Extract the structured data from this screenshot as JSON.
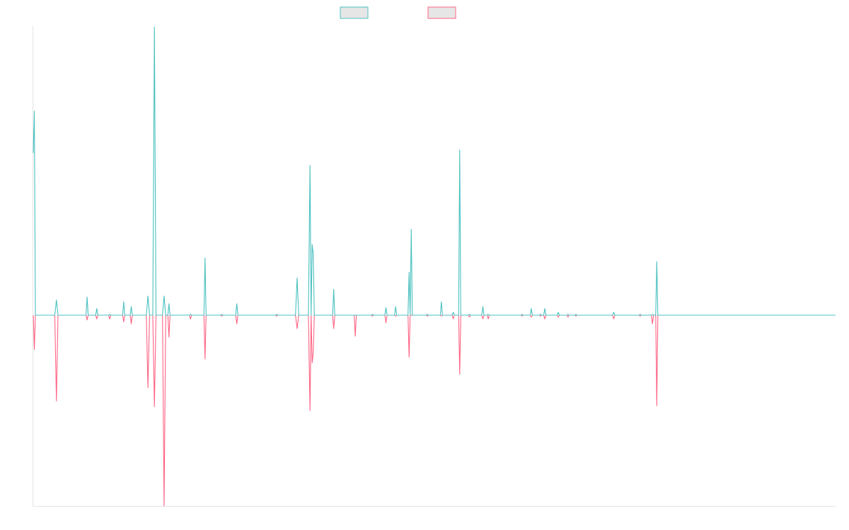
{
  "colors": {
    "series_a_stroke": "#4bc0c0",
    "series_b_stroke": "#ff6384",
    "legend_fill": "#e6e6e6",
    "axis": "#e5e5e5"
  },
  "chart_data": {
    "type": "line",
    "grid": false,
    "legend": "top-center",
    "title": "",
    "xlabel": "",
    "ylabel": "",
    "x_count": 150,
    "ylim": [
      -1,
      1.5
    ],
    "series": [
      {
        "color": "#4bc0c0",
        "points": [
          [
            0,
            0.85
          ],
          [
            0.2,
            1.07
          ],
          [
            0.4,
            0.0
          ],
          [
            4,
            0.0
          ],
          [
            4.3,
            0.08
          ],
          [
            4.6,
            0.0
          ],
          [
            9.8,
            0.0
          ],
          [
            10,
            0.095
          ],
          [
            10.2,
            0.0
          ],
          [
            11.6,
            0.0
          ],
          [
            11.8,
            0.035
          ],
          [
            12,
            0.0
          ],
          [
            14,
            0.0
          ],
          [
            14.2,
            0.005
          ],
          [
            14.4,
            0.0
          ],
          [
            16.6,
            0.0
          ],
          [
            16.8,
            0.07
          ],
          [
            17,
            0.0
          ],
          [
            18,
            0.0
          ],
          [
            18.2,
            0.045
          ],
          [
            18.4,
            0.0
          ],
          [
            21,
            0.0
          ],
          [
            21.3,
            0.1
          ],
          [
            21.6,
            0.0
          ],
          [
            22.2,
            0.0
          ],
          [
            22.5,
            1.51
          ],
          [
            22.8,
            0.0
          ],
          [
            24,
            0.0
          ],
          [
            24.3,
            0.1
          ],
          [
            24.6,
            0.0
          ],
          [
            25,
            0.0
          ],
          [
            25.2,
            0.06
          ],
          [
            25.4,
            0.0
          ],
          [
            29,
            0.0
          ],
          [
            29.2,
            0.005
          ],
          [
            29.4,
            0.0
          ],
          [
            31.7,
            0.0
          ],
          [
            31.9,
            0.3
          ],
          [
            32.1,
            0.0
          ],
          [
            34.8,
            0.0
          ],
          [
            35,
            0.005
          ],
          [
            35.2,
            0.0
          ],
          [
            37.6,
            0.0
          ],
          [
            37.8,
            0.06
          ],
          [
            38,
            0.0
          ],
          [
            45,
            0.0
          ],
          [
            45.2,
            0.005
          ],
          [
            45.4,
            0.0
          ],
          [
            48.7,
            0.0
          ],
          [
            49,
            0.195
          ],
          [
            49.3,
            0.0
          ],
          [
            51.1,
            0.0
          ],
          [
            51.4,
            0.785
          ],
          [
            51.6,
            0.0
          ],
          [
            51.8,
            0.37
          ],
          [
            52,
            0.32
          ],
          [
            52.2,
            0.0
          ],
          [
            55.6,
            0.0
          ],
          [
            55.8,
            0.135
          ],
          [
            56,
            0.0
          ],
          [
            62.8,
            0.0
          ],
          [
            63,
            0.005
          ],
          [
            63.2,
            0.0
          ],
          [
            65.3,
            0.0
          ],
          [
            65.5,
            0.04
          ],
          [
            65.7,
            0.0
          ],
          [
            67.1,
            0.0
          ],
          [
            67.3,
            0.045
          ],
          [
            67.5,
            0.0
          ],
          [
            69.6,
            0.0
          ],
          [
            69.8,
            0.225
          ],
          [
            70,
            0.0
          ],
          [
            70.2,
            0.45
          ],
          [
            70.4,
            0.0
          ],
          [
            73,
            0.0
          ],
          [
            73.2,
            0.005
          ],
          [
            73.4,
            0.0
          ],
          [
            75.6,
            0.0
          ],
          [
            75.8,
            0.07
          ],
          [
            76,
            0.0
          ],
          [
            77.8,
            0.0
          ],
          [
            78,
            0.015
          ],
          [
            78.2,
            0.0
          ],
          [
            79,
            0.0
          ],
          [
            79.2,
            0.865
          ],
          [
            79.4,
            0.0
          ],
          [
            80.8,
            0.0
          ],
          [
            81,
            0.005
          ],
          [
            81.2,
            0.0
          ],
          [
            83.3,
            0.0
          ],
          [
            83.5,
            0.045
          ],
          [
            83.7,
            0.0
          ],
          [
            84.3,
            0.0
          ],
          [
            84.5,
            0.005
          ],
          [
            84.7,
            0.0
          ],
          [
            90.6,
            0.0
          ],
          [
            90.8,
            0.005
          ],
          [
            90.9,
            0.0
          ],
          [
            92.3,
            0.0
          ],
          [
            92.5,
            0.035
          ],
          [
            92.7,
            0.0
          ],
          [
            94,
            0.0
          ],
          [
            94.2,
            0.005
          ],
          [
            94.4,
            0.0
          ],
          [
            94.8,
            0.0
          ],
          [
            95,
            0.035
          ],
          [
            95.2,
            0.0
          ],
          [
            97.3,
            0.0
          ],
          [
            97.5,
            0.015
          ],
          [
            97.7,
            0.0
          ],
          [
            99.1,
            0.0
          ],
          [
            99.3,
            0.005
          ],
          [
            99.5,
            0.0
          ],
          [
            100.6,
            0.0
          ],
          [
            100.8,
            0.005
          ],
          [
            100.9,
            0.0
          ],
          [
            107.6,
            0.0
          ],
          [
            107.8,
            0.015
          ],
          [
            108,
            0.0
          ],
          [
            112.5,
            0.0
          ],
          [
            112.7,
            0.005
          ],
          [
            112.9,
            0.0
          ],
          [
            114.8,
            0.0
          ],
          [
            115,
            0.005
          ],
          [
            115.2,
            0.0
          ],
          [
            115.6,
            0.0
          ],
          [
            115.8,
            0.28
          ],
          [
            116,
            0.0
          ],
          [
            149,
            0.0
          ]
        ]
      },
      {
        "color": "#ff6384",
        "points": [
          [
            0,
            0.0
          ],
          [
            0.2,
            -0.18
          ],
          [
            0.4,
            0.0
          ],
          [
            4,
            0.0
          ],
          [
            4.3,
            -0.45
          ],
          [
            4.6,
            0.0
          ],
          [
            9.8,
            0.0
          ],
          [
            10,
            -0.025
          ],
          [
            10.2,
            0.0
          ],
          [
            11.6,
            0.0
          ],
          [
            11.8,
            -0.02
          ],
          [
            12,
            0.0
          ],
          [
            14,
            0.0
          ],
          [
            14.2,
            -0.02
          ],
          [
            14.4,
            0.0
          ],
          [
            16.6,
            0.0
          ],
          [
            16.8,
            -0.035
          ],
          [
            17,
            0.0
          ],
          [
            18,
            0.0
          ],
          [
            18.2,
            -0.045
          ],
          [
            18.4,
            0.0
          ],
          [
            21,
            0.0
          ],
          [
            21.3,
            -0.38
          ],
          [
            21.6,
            0.0
          ],
          [
            22.2,
            0.0
          ],
          [
            22.5,
            -0.48
          ],
          [
            22.8,
            0.0
          ],
          [
            24,
            0.0
          ],
          [
            24.3,
            -1.0
          ],
          [
            24.6,
            0.0
          ],
          [
            25,
            0.0
          ],
          [
            25.2,
            -0.115
          ],
          [
            25.4,
            0.0
          ],
          [
            29,
            0.0
          ],
          [
            29.2,
            -0.02
          ],
          [
            29.4,
            0.0
          ],
          [
            31.7,
            0.0
          ],
          [
            31.9,
            -0.23
          ],
          [
            32.1,
            0.0
          ],
          [
            34.8,
            0.0
          ],
          [
            35,
            -0.005
          ],
          [
            35.2,
            0.0
          ],
          [
            37.6,
            0.0
          ],
          [
            37.8,
            -0.045
          ],
          [
            38,
            0.0
          ],
          [
            45,
            0.0
          ],
          [
            45.2,
            -0.005
          ],
          [
            45.4,
            0.0
          ],
          [
            48.7,
            0.0
          ],
          [
            49,
            -0.07
          ],
          [
            49.3,
            0.0
          ],
          [
            51.1,
            0.0
          ],
          [
            51.4,
            -0.5
          ],
          [
            51.6,
            0.0
          ],
          [
            51.8,
            -0.25
          ],
          [
            52,
            -0.2
          ],
          [
            52.2,
            0.0
          ],
          [
            55.6,
            0.0
          ],
          [
            55.8,
            -0.07
          ],
          [
            56,
            0.0
          ],
          [
            59.6,
            0.0
          ],
          [
            59.8,
            -0.11
          ],
          [
            60,
            0.0
          ],
          [
            62.8,
            0.0
          ],
          [
            63,
            -0.005
          ],
          [
            63.2,
            0.0
          ],
          [
            65.3,
            0.0
          ],
          [
            65.5,
            -0.04
          ],
          [
            65.7,
            0.0
          ],
          [
            67.1,
            0.0
          ],
          [
            67.3,
            -0.005
          ],
          [
            67.5,
            0.0
          ],
          [
            69.6,
            0.0
          ],
          [
            69.8,
            -0.22
          ],
          [
            70,
            0.0
          ],
          [
            73,
            0.0
          ],
          [
            73.2,
            -0.005
          ],
          [
            73.4,
            0.0
          ],
          [
            75.6,
            0.0
          ],
          [
            75.8,
            -0.005
          ],
          [
            76,
            0.0
          ],
          [
            77.8,
            0.0
          ],
          [
            78,
            -0.02
          ],
          [
            78.2,
            0.0
          ],
          [
            79,
            0.0
          ],
          [
            79.2,
            -0.31
          ],
          [
            79.4,
            0.0
          ],
          [
            80.8,
            0.0
          ],
          [
            81,
            -0.01
          ],
          [
            81.2,
            0.0
          ],
          [
            83.3,
            0.0
          ],
          [
            83.5,
            -0.02
          ],
          [
            83.7,
            0.0
          ],
          [
            84.3,
            0.0
          ],
          [
            84.5,
            -0.02
          ],
          [
            84.7,
            0.0
          ],
          [
            90.6,
            0.0
          ],
          [
            90.8,
            -0.005
          ],
          [
            90.9,
            0.0
          ],
          [
            92.3,
            0.0
          ],
          [
            92.5,
            -0.01
          ],
          [
            92.7,
            0.0
          ],
          [
            94,
            0.0
          ],
          [
            94.2,
            -0.005
          ],
          [
            94.4,
            0.0
          ],
          [
            94.8,
            0.0
          ],
          [
            95,
            -0.02
          ],
          [
            95.2,
            0.0
          ],
          [
            97.3,
            0.0
          ],
          [
            97.5,
            -0.01
          ],
          [
            97.7,
            0.0
          ],
          [
            99.1,
            0.0
          ],
          [
            99.3,
            -0.01
          ],
          [
            99.5,
            0.0
          ],
          [
            100.6,
            0.0
          ],
          [
            100.8,
            -0.005
          ],
          [
            100.9,
            0.0
          ],
          [
            107.6,
            0.0
          ],
          [
            107.8,
            -0.02
          ],
          [
            108,
            0.0
          ],
          [
            112.5,
            0.0
          ],
          [
            112.7,
            -0.005
          ],
          [
            112.9,
            0.0
          ],
          [
            114.8,
            0.0
          ],
          [
            115,
            -0.045
          ],
          [
            115.2,
            0.0
          ],
          [
            115.6,
            0.0
          ],
          [
            115.8,
            -0.475
          ],
          [
            116,
            0.0
          ],
          [
            149,
            0.0
          ]
        ]
      }
    ]
  }
}
